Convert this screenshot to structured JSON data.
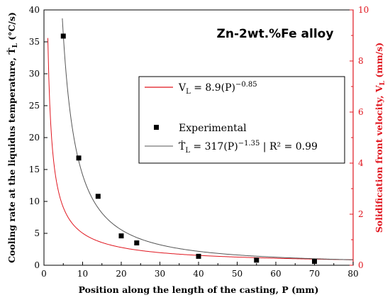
{
  "chart_data": {
    "type": "scatter",
    "title": "Zn-2wt.%Fe alloy",
    "xlabel": "Position along the length of the casting, P (mm)",
    "ylabel_left": "Cooling rate at the liquidus temperature, Ṫ_L (°C/s)",
    "ylabel_right": "Solidification front velocity, V_L (mm/s)",
    "xlim": [
      0,
      80
    ],
    "ylim_left": [
      0,
      40
    ],
    "ylim_right": [
      0,
      10
    ],
    "x_ticks": [
      0,
      10,
      20,
      30,
      40,
      50,
      60,
      70,
      80
    ],
    "y_left_ticks": [
      0,
      5,
      10,
      15,
      20,
      25,
      30,
      35,
      40
    ],
    "y_right_ticks": [
      0,
      2,
      4,
      6,
      8,
      10
    ],
    "grid": false,
    "series": [
      {
        "name": "Experimental",
        "kind": "scatter",
        "axis": "left",
        "color": "#000000",
        "x": [
          5,
          9,
          14,
          20,
          24,
          40,
          55,
          70
        ],
        "y": [
          35.9,
          16.8,
          10.8,
          4.6,
          3.5,
          1.4,
          0.8,
          0.6
        ]
      },
      {
        "name": "Ṫ_L = 317(P)^−1.35 | R² = 0.99",
        "kind": "fit",
        "axis": "left",
        "color": "#555555",
        "coef": 317,
        "exponent": -1.35
      },
      {
        "name": "V_L = 8.9(P)^−0.85",
        "kind": "fit",
        "axis": "right",
        "color": "#e0161f",
        "coef": 8.9,
        "exponent": -0.85
      }
    ],
    "legend": {
      "placement": "center-right",
      "v_label": {
        "main": "V",
        "sub": "L",
        "rest": " = 8.9(P)",
        "sup": "−0.85"
      },
      "exp_label": "Experimental",
      "t_label": {
        "main": "Ṫ",
        "sub": "L",
        "rest": " = 317(P)",
        "sup": "−1.35",
        "tail": " | R² = 0.99"
      }
    },
    "axis_labels_render": {
      "left": {
        "main": "Cooling rate at the liquidus temperature, Ṫ",
        "sub": "L",
        "rest": " (°C/s)"
      },
      "right": {
        "main": "Solidification front velocity, V",
        "sub": "L",
        "rest": " (mm/s)"
      }
    }
  },
  "colors": {
    "left_axis": "#000000",
    "right_axis": "#e0161f"
  }
}
